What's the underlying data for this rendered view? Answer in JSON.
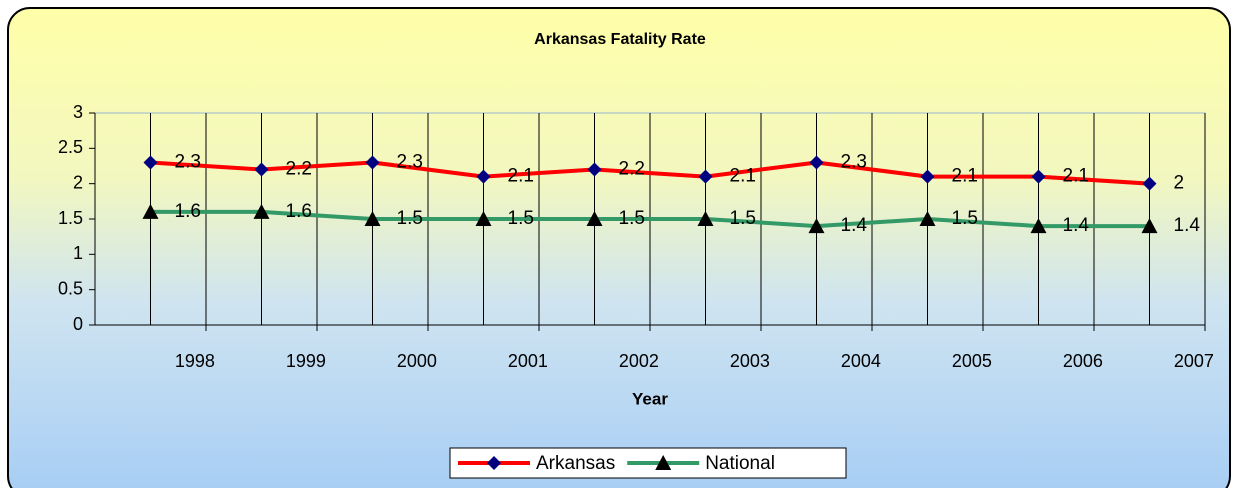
{
  "chart_data": {
    "type": "line",
    "title": "Arkansas Fatality Rate",
    "x_label": "Year",
    "categories": [
      "1998",
      "1999",
      "2000",
      "2001",
      "2002",
      "2003",
      "2004",
      "2005",
      "2006",
      "2007"
    ],
    "series": [
      {
        "name": "Arkansas",
        "color": "#ff0000",
        "marker": "diamond",
        "marker_color": "#000080",
        "values": [
          2.3,
          2.2,
          2.3,
          2.1,
          2.2,
          2.1,
          2.3,
          2.1,
          2.1,
          2
        ]
      },
      {
        "name": "National",
        "color": "#339966",
        "marker": "triangle",
        "marker_color": "#000000",
        "values": [
          1.6,
          1.6,
          1.5,
          1.5,
          1.5,
          1.5,
          1.4,
          1.5,
          1.4,
          1.4
        ]
      }
    ],
    "ylim": [
      0,
      3
    ],
    "yticks": [
      0,
      0.5,
      1,
      1.5,
      2,
      2.5,
      3
    ],
    "grid": true,
    "legend": "bottom"
  }
}
